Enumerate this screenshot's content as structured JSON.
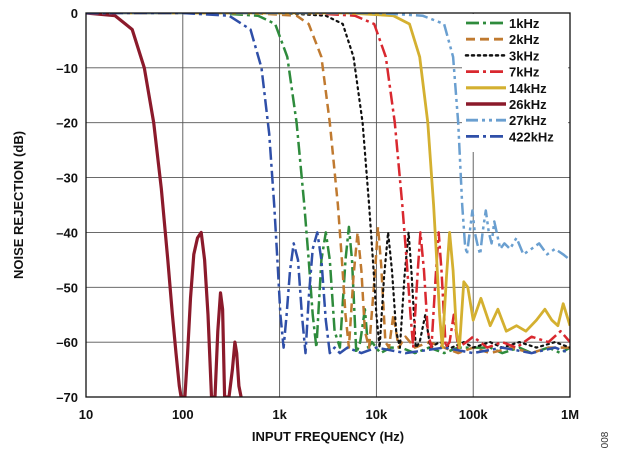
{
  "chart_data": {
    "type": "line",
    "xlabel": "INPUT FREQUENCY (Hz)",
    "ylabel": "NOISE REJECTION (dB)",
    "x_scale": "log",
    "xlim": [
      10,
      1000000
    ],
    "ylim": [
      -70,
      0
    ],
    "grid": true,
    "legend_position": "top-right",
    "x_ticks": [
      {
        "value": 10,
        "label": "10"
      },
      {
        "value": 100,
        "label": "100"
      },
      {
        "value": 1000,
        "label": "1k"
      },
      {
        "value": 10000,
        "label": "10k"
      },
      {
        "value": 100000,
        "label": "100k"
      },
      {
        "value": 1000000,
        "label": "1M"
      }
    ],
    "y_ticks": [
      {
        "value": 0,
        "label": "0"
      },
      {
        "value": -10,
        "label": "–10"
      },
      {
        "value": -20,
        "label": "–20"
      },
      {
        "value": -30,
        "label": "–30"
      },
      {
        "value": -40,
        "label": "–40"
      },
      {
        "value": -50,
        "label": "–50"
      },
      {
        "value": -60,
        "label": "–60"
      },
      {
        "value": -70,
        "label": "–70"
      }
    ],
    "figure_id": "008",
    "series": [
      {
        "name": "1kHz",
        "color": "#2e8b3c",
        "dash": "dashdot",
        "width": 2.5,
        "points": [
          [
            10,
            0
          ],
          [
            200,
            0
          ],
          [
            600,
            -0.5
          ],
          [
            900,
            -2
          ],
          [
            1200,
            -8
          ],
          [
            1500,
            -20
          ],
          [
            1800,
            -35
          ],
          [
            2000,
            -45
          ],
          [
            2200,
            -55
          ],
          [
            2400,
            -61
          ],
          [
            2700,
            -45
          ],
          [
            3000,
            -40
          ],
          [
            3300,
            -45
          ],
          [
            3700,
            -58
          ],
          [
            4200,
            -61
          ],
          [
            4800,
            -45
          ],
          [
            5200,
            -39
          ],
          [
            5600,
            -45
          ],
          [
            6200,
            -62
          ],
          [
            6800,
            -60
          ],
          [
            7600,
            -54
          ],
          [
            8200,
            -61
          ],
          [
            9000,
            -60
          ],
          [
            11000,
            -62
          ],
          [
            14000,
            -61
          ],
          [
            18000,
            -61
          ],
          [
            25000,
            -62
          ],
          [
            35000,
            -61
          ],
          [
            50000,
            -62
          ],
          [
            70000,
            -61
          ],
          [
            100000,
            -61
          ],
          [
            150000,
            -61
          ],
          [
            200000,
            -62
          ],
          [
            300000,
            -61
          ],
          [
            400000,
            -62
          ],
          [
            600000,
            -61
          ],
          [
            800000,
            -62
          ],
          [
            1000000,
            -61
          ]
        ]
      },
      {
        "name": "2kHz",
        "color": "#c07a30",
        "dash": "dash",
        "width": 2.5,
        "points": [
          [
            10,
            0
          ],
          [
            500,
            0
          ],
          [
            1500,
            -0.5
          ],
          [
            2000,
            -2
          ],
          [
            2700,
            -8
          ],
          [
            3300,
            -20
          ],
          [
            4000,
            -35
          ],
          [
            4400,
            -45
          ],
          [
            4800,
            -55
          ],
          [
            5200,
            -61
          ],
          [
            5800,
            -48
          ],
          [
            6400,
            -40
          ],
          [
            7000,
            -47
          ],
          [
            7600,
            -58
          ],
          [
            8400,
            -61
          ],
          [
            9600,
            -48
          ],
          [
            10400,
            -39
          ],
          [
            11200,
            -46
          ],
          [
            12400,
            -60
          ],
          [
            13500,
            -61
          ],
          [
            15000,
            -55
          ],
          [
            17000,
            -61
          ],
          [
            20000,
            -59
          ],
          [
            25000,
            -61
          ],
          [
            35000,
            -60
          ],
          [
            50000,
            -61
          ],
          [
            70000,
            -62
          ],
          [
            100000,
            -61
          ],
          [
            150000,
            -62
          ],
          [
            250000,
            -61
          ],
          [
            400000,
            -62
          ],
          [
            600000,
            -61
          ],
          [
            1000000,
            -61
          ]
        ]
      },
      {
        "name": "3kHz",
        "color": "#111111",
        "dash": "dot",
        "width": 2.2,
        "points": [
          [
            10,
            0
          ],
          [
            1000,
            0
          ],
          [
            3000,
            -0.5
          ],
          [
            4500,
            -2
          ],
          [
            5800,
            -8
          ],
          [
            7200,
            -20
          ],
          [
            8400,
            -35
          ],
          [
            9200,
            -45
          ],
          [
            10000,
            -55
          ],
          [
            10800,
            -61
          ],
          [
            12000,
            -48
          ],
          [
            13200,
            -40
          ],
          [
            14500,
            -47
          ],
          [
            16000,
            -58
          ],
          [
            17500,
            -61
          ],
          [
            19500,
            -48
          ],
          [
            21500,
            -40
          ],
          [
            23000,
            -47
          ],
          [
            25500,
            -61
          ],
          [
            28000,
            -60
          ],
          [
            32000,
            -55
          ],
          [
            36000,
            -61
          ],
          [
            45000,
            -60
          ],
          [
            60000,
            -61
          ],
          [
            80000,
            -60
          ],
          [
            100000,
            -61
          ],
          [
            150000,
            -60
          ],
          [
            200000,
            -61
          ],
          [
            300000,
            -60
          ],
          [
            450000,
            -61
          ],
          [
            700000,
            -60
          ],
          [
            1000000,
            -61
          ]
        ]
      },
      {
        "name": "7kHz",
        "color": "#d9282f",
        "dash": "dashdot",
        "width": 2.5,
        "points": [
          [
            10,
            0
          ],
          [
            2000,
            0
          ],
          [
            6000,
            -0.5
          ],
          [
            9500,
            -2
          ],
          [
            12500,
            -8
          ],
          [
            15500,
            -20
          ],
          [
            18500,
            -35
          ],
          [
            20500,
            -45
          ],
          [
            22500,
            -55
          ],
          [
            24000,
            -61
          ],
          [
            26500,
            -48
          ],
          [
            28500,
            -40
          ],
          [
            31000,
            -47
          ],
          [
            34000,
            -58
          ],
          [
            37000,
            -61
          ],
          [
            41000,
            -48
          ],
          [
            44000,
            -40
          ],
          [
            47000,
            -47
          ],
          [
            52000,
            -61
          ],
          [
            57000,
            -60
          ],
          [
            63000,
            -55
          ],
          [
            70000,
            -61
          ],
          [
            85000,
            -60
          ],
          [
            100000,
            -59
          ],
          [
            140000,
            -61
          ],
          [
            200000,
            -60
          ],
          [
            280000,
            -61
          ],
          [
            400000,
            -59
          ],
          [
            600000,
            -60
          ],
          [
            800000,
            -58
          ],
          [
            1000000,
            -60
          ]
        ]
      },
      {
        "name": "14kHz",
        "color": "#d4b030",
        "dash": "solid",
        "width": 2.8,
        "points": [
          [
            10,
            0
          ],
          [
            5000,
            0
          ],
          [
            15000,
            -0.5
          ],
          [
            22000,
            -2
          ],
          [
            28000,
            -8
          ],
          [
            34000,
            -20
          ],
          [
            39000,
            -35
          ],
          [
            42000,
            -45
          ],
          [
            45000,
            -55
          ],
          [
            48000,
            -61
          ],
          [
            53000,
            -48
          ],
          [
            57000,
            -40
          ],
          [
            62000,
            -47
          ],
          [
            67000,
            -58
          ],
          [
            72000,
            -61
          ],
          [
            80000,
            -49
          ],
          [
            88000,
            -50
          ],
          [
            100000,
            -56
          ],
          [
            120000,
            -52
          ],
          [
            150000,
            -57
          ],
          [
            180000,
            -54
          ],
          [
            220000,
            -58
          ],
          [
            280000,
            -57
          ],
          [
            350000,
            -58
          ],
          [
            450000,
            -56
          ],
          [
            550000,
            -54
          ],
          [
            650000,
            -56
          ],
          [
            750000,
            -57
          ],
          [
            850000,
            -53
          ],
          [
            1000000,
            -57
          ]
        ]
      },
      {
        "name": "26kHz",
        "color": "#8b1a2b",
        "dash": "solid",
        "width": 3.2,
        "points": [
          [
            10,
            0
          ],
          [
            20,
            -0.5
          ],
          [
            30,
            -3
          ],
          [
            40,
            -10
          ],
          [
            50,
            -20
          ],
          [
            60,
            -32
          ],
          [
            70,
            -45
          ],
          [
            78,
            -55
          ],
          [
            85,
            -62
          ],
          [
            92,
            -68
          ],
          [
            96,
            -70
          ],
          [
            105,
            -70
          ],
          [
            112,
            -62
          ],
          [
            120,
            -52
          ],
          [
            130,
            -44
          ],
          [
            142,
            -41
          ],
          [
            155,
            -40
          ],
          [
            168,
            -45
          ],
          [
            182,
            -55
          ],
          [
            198,
            -70
          ],
          [
            215,
            -70
          ],
          [
            230,
            -58
          ],
          [
            245,
            -51
          ],
          [
            258,
            -54
          ],
          [
            270,
            -70
          ],
          [
            300,
            -70
          ],
          [
            325,
            -65
          ],
          [
            345,
            -60
          ],
          [
            360,
            -62
          ],
          [
            380,
            -68
          ],
          [
            400,
            -70
          ]
        ]
      },
      {
        "name": "27kHz",
        "color": "#6a9fd0",
        "dash": "dashdotdot",
        "width": 2.5,
        "points": [
          [
            10,
            0
          ],
          [
            10000,
            0
          ],
          [
            30000,
            -0.5
          ],
          [
            50000,
            -2
          ],
          [
            62000,
            -8
          ],
          [
            70000,
            -20
          ],
          [
            77000,
            -35
          ],
          [
            82000,
            -42
          ],
          [
            86000,
            -44
          ],
          [
            92000,
            -40
          ],
          [
            98000,
            -36
          ],
          [
            104000,
            -40
          ],
          [
            110000,
            -42
          ],
          [
            118000,
            -44
          ],
          [
            125000,
            -40
          ],
          [
            135000,
            -36
          ],
          [
            145000,
            -40
          ],
          [
            155000,
            -42
          ],
          [
            165000,
            -38
          ],
          [
            175000,
            -40
          ],
          [
            190000,
            -43
          ],
          [
            210000,
            -42
          ],
          [
            240000,
            -43
          ],
          [
            280000,
            -41
          ],
          [
            330000,
            -44
          ],
          [
            400000,
            -43
          ],
          [
            480000,
            -42
          ],
          [
            580000,
            -44
          ],
          [
            700000,
            -43
          ],
          [
            850000,
            -44
          ],
          [
            1000000,
            -45
          ]
        ]
      },
      {
        "name": "422kHz",
        "color": "#2f4fa8",
        "dash": "dashdot",
        "width": 2.5,
        "points": [
          [
            10,
            0
          ],
          [
            100,
            0
          ],
          [
            300,
            -0.5
          ],
          [
            500,
            -3
          ],
          [
            650,
            -10
          ],
          [
            780,
            -22
          ],
          [
            880,
            -35
          ],
          [
            950,
            -45
          ],
          [
            1020,
            -55
          ],
          [
            1100,
            -61
          ],
          [
            1180,
            -55
          ],
          [
            1280,
            -47
          ],
          [
            1400,
            -42
          ],
          [
            1550,
            -45
          ],
          [
            1700,
            -55
          ],
          [
            1850,
            -62
          ],
          [
            2000,
            -52
          ],
          [
            2200,
            -43
          ],
          [
            2450,
            -40
          ],
          [
            2700,
            -45
          ],
          [
            3000,
            -56
          ],
          [
            3300,
            -62
          ],
          [
            3700,
            -61
          ],
          [
            4200,
            -62
          ],
          [
            5000,
            -61
          ],
          [
            7000,
            -62
          ],
          [
            10000,
            -61
          ],
          [
            20000,
            -62
          ],
          [
            50000,
            -61
          ],
          [
            100000,
            -62
          ],
          [
            200000,
            -61
          ],
          [
            400000,
            -62
          ],
          [
            700000,
            -61
          ],
          [
            1000000,
            -62
          ]
        ]
      }
    ]
  }
}
